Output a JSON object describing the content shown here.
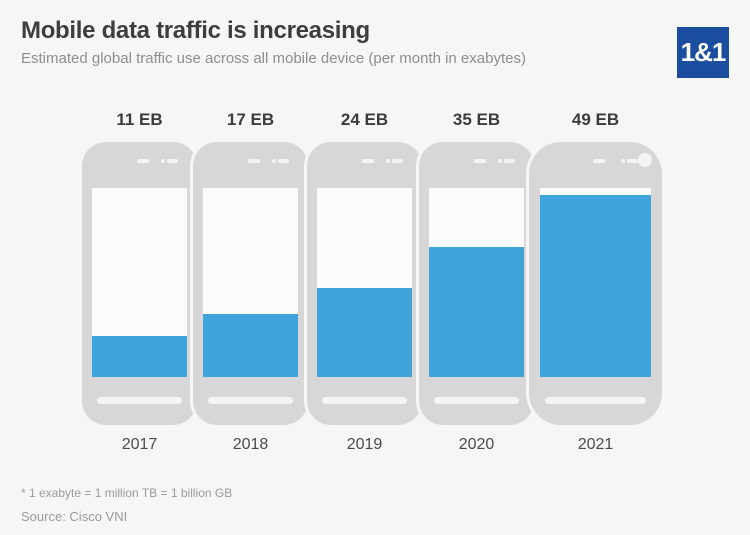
{
  "header": {
    "title": "Mobile data traffic is increasing",
    "subtitle": "Estimated global traffic use across all mobile device (per month in exabytes)",
    "logo_text": "1&1"
  },
  "chart_data": {
    "type": "bar",
    "style": "pictogram-smartphone-fill",
    "title": "Mobile data traffic is increasing",
    "subtitle": "Estimated global traffic use across all mobile device (per month in exabytes)",
    "unit": "EB (exabytes per month)",
    "categories": [
      "2017",
      "2018",
      "2019",
      "2020",
      "2021"
    ],
    "values": [
      11,
      17,
      24,
      35,
      49
    ],
    "value_labels": [
      "11 EB",
      "17 EB",
      "24 EB",
      "35 EB",
      "49 EB"
    ],
    "ylim": [
      0,
      51
    ],
    "grid": false,
    "legend": "none",
    "bar_color": "#3fa3dc"
  },
  "footer": {
    "footnote": "* 1 exabyte = 1 million TB = 1 billion GB",
    "source": "Source: Cisco VNI"
  },
  "colors": {
    "background": "#f6f6f6",
    "phone_body": "#d7d7d7",
    "screen_white": "#fbfbfb",
    "bar_blue": "#3fa3dc",
    "logo_blue": "#1b4d9e",
    "title_text": "#3e3e3e",
    "muted_text": "#8e8e8e",
    "footer_text": "#9b9b9b"
  }
}
